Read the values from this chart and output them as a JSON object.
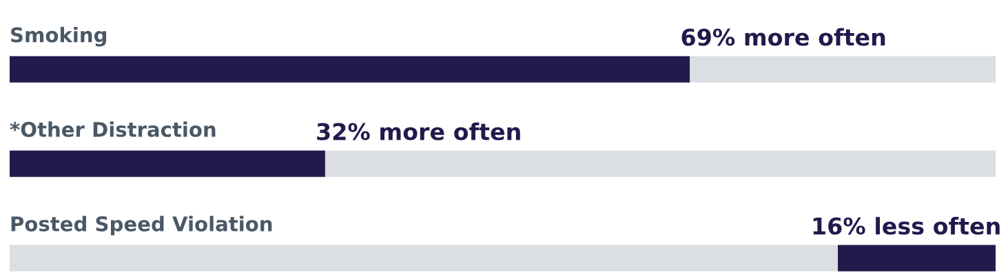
{
  "chart_data": {
    "type": "bar",
    "orientation": "horizontal",
    "stacked": true,
    "categories": [
      "Smoking",
      "*Other Distraction",
      "Posted Speed Violation"
    ],
    "series": [
      {
        "color": "#221a4c",
        "values": [
          69,
          32,
          null
        ],
        "value_labels": [
          "69% more often",
          "32% more often",
          null
        ]
      },
      {
        "color": "#dcdfe2",
        "values": [
          31,
          68,
          84
        ]
      },
      {
        "color": "#221a4c",
        "values": [
          null,
          null,
          16
        ],
        "value_labels": [
          null,
          null,
          "16% less often"
        ]
      }
    ]
  }
}
